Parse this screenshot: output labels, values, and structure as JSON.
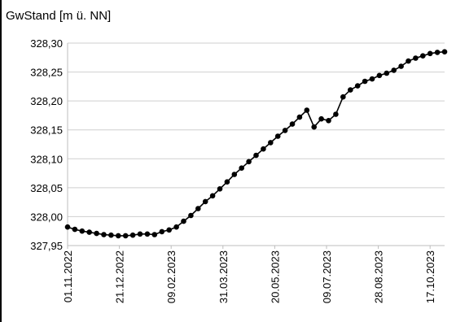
{
  "chart_data": {
    "type": "line",
    "title": "",
    "xlabel": "",
    "ylabel": "GwStand [m ü. NN]",
    "ylim": [
      327.95,
      328.3
    ],
    "yticks": [
      "327,95",
      "328,00",
      "328,05",
      "328,10",
      "328,15",
      "328,20",
      "328,25",
      "328,30"
    ],
    "xticks": [
      "01.11.2022",
      "21.12.2022",
      "09.02.2023",
      "31.03.2023",
      "20.05.2023",
      "09.07.2023",
      "28.08.2023",
      "17.10.2023"
    ],
    "xlim": [
      "2022-11-01",
      "2023-10-31"
    ],
    "grid": "horizontal",
    "legend": "none",
    "color": "#000000",
    "series": [
      {
        "x": [
          "2022-11-01",
          "2022-11-08",
          "2022-11-15",
          "2022-11-22",
          "2022-11-29",
          "2022-12-06",
          "2022-12-13",
          "2022-12-20",
          "2022-12-27",
          "2023-01-03",
          "2023-01-10",
          "2023-01-17",
          "2023-01-24",
          "2023-01-31",
          "2023-02-07",
          "2023-02-14",
          "2023-02-21",
          "2023-02-28",
          "2023-03-07",
          "2023-03-14",
          "2023-03-21",
          "2023-03-28",
          "2023-04-04",
          "2023-04-11",
          "2023-04-18",
          "2023-04-25",
          "2023-05-02",
          "2023-05-09",
          "2023-05-16",
          "2023-05-23",
          "2023-05-30",
          "2023-06-06",
          "2023-06-13",
          "2023-06-20",
          "2023-06-27",
          "2023-07-04",
          "2023-07-11",
          "2023-07-18",
          "2023-07-25",
          "2023-08-01",
          "2023-08-08",
          "2023-08-15",
          "2023-08-22",
          "2023-08-29",
          "2023-09-05",
          "2023-09-12",
          "2023-09-19",
          "2023-09-26",
          "2023-10-03",
          "2023-10-10",
          "2023-10-17",
          "2023-10-24",
          "2023-10-31"
        ],
        "values": [
          327.982,
          327.978,
          327.975,
          327.973,
          327.971,
          327.969,
          327.968,
          327.967,
          327.967,
          327.968,
          327.97,
          327.97,
          327.969,
          327.974,
          327.977,
          327.982,
          327.992,
          328.002,
          328.014,
          328.026,
          328.036,
          328.048,
          328.06,
          328.073,
          328.084,
          328.095,
          328.106,
          328.117,
          328.128,
          328.139,
          328.149,
          328.16,
          328.172,
          328.184,
          328.155,
          328.169,
          328.166,
          328.177,
          328.207,
          328.219,
          328.226,
          328.234,
          328.238,
          328.244,
          328.248,
          328.253,
          328.26,
          328.269,
          328.274,
          328.278,
          328.282,
          328.284,
          328.285
        ]
      }
    ]
  }
}
